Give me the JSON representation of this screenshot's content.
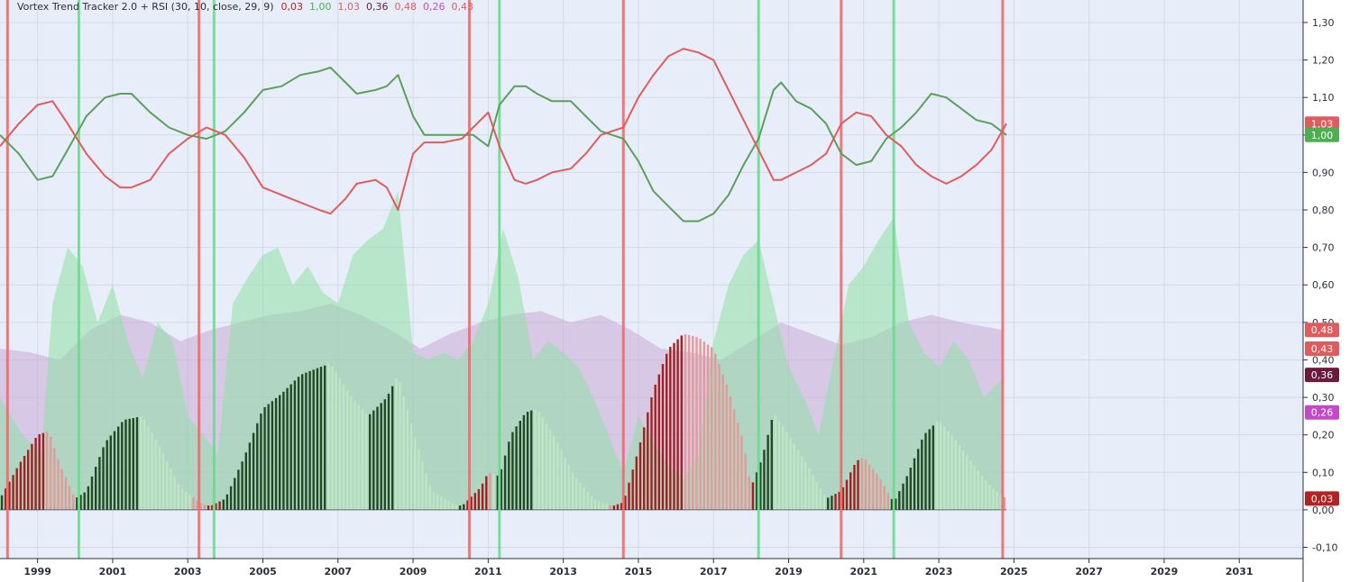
{
  "chart_data": {
    "type": "line",
    "title": "Vortex Trend Tracker 2.0 + RSI (30, 10, close, 29, 9)",
    "legend_values": [
      {
        "text": "0,03",
        "color": "#b22222"
      },
      {
        "text": "1,00",
        "color": "#4caf50"
      },
      {
        "text": "1,03",
        "color": "#e05c5c"
      },
      {
        "text": "0,36",
        "color": "#6b1a3e"
      },
      {
        "text": "0,48",
        "color": "#e05c5c"
      },
      {
        "text": "0,26",
        "color": "#c24ac9"
      },
      {
        "text": "0,43",
        "color": "#e05c5c"
      }
    ],
    "y_ticks": [
      "1,30",
      "1,20",
      "1,10",
      "1,00",
      "0,90",
      "0,80",
      "0,70",
      "0,60",
      "0,50",
      "0,40",
      "0,30",
      "0,20",
      "0,10",
      "0,00",
      "-0,10"
    ],
    "ylim": [
      -0.13,
      1.36
    ],
    "x_ticks": [
      "1999",
      "2001",
      "2003",
      "2005",
      "2007",
      "2009",
      "2011",
      "2013",
      "2015",
      "2017",
      "2019",
      "2021",
      "2023",
      "2025",
      "2027",
      "2029",
      "2031"
    ],
    "xlim": [
      1998.0,
      2032.7
    ],
    "grid": true,
    "series": [
      {
        "key": "vi_plus",
        "color": "#5aa05a",
        "x": [
          1998.0,
          1998.5,
          1999.0,
          1999.4,
          1999.8,
          2000.3,
          2000.8,
          2001.2,
          2001.5,
          2002.0,
          2002.5,
          2003.0,
          2003.5,
          2004.0,
          2004.5,
          2005.0,
          2005.5,
          2006.0,
          2006.5,
          2006.8,
          2007.2,
          2007.5,
          2008.0,
          2008.3,
          2008.6,
          2009.0,
          2009.3,
          2009.8,
          2010.3,
          2010.6,
          2011.0,
          2011.3,
          2011.7,
          2012.0,
          2012.3,
          2012.7,
          2013.2,
          2013.6,
          2014.0,
          2014.3,
          2014.6,
          2015.0,
          2015.4,
          2015.8,
          2016.2,
          2016.6,
          2017.0,
          2017.4,
          2017.8,
          2018.2,
          2018.6,
          2018.8,
          2019.2,
          2019.6,
          2020.0,
          2020.4,
          2020.8,
          2021.2,
          2021.6,
          2022.0,
          2022.4,
          2022.8,
          2023.2,
          2023.6,
          2024.0,
          2024.4,
          2024.8
        ],
        "values": [
          1.0,
          0.95,
          0.88,
          0.89,
          0.96,
          1.05,
          1.1,
          1.11,
          1.11,
          1.06,
          1.02,
          1.0,
          0.99,
          1.01,
          1.06,
          1.12,
          1.13,
          1.16,
          1.17,
          1.18,
          1.14,
          1.11,
          1.12,
          1.13,
          1.16,
          1.05,
          1.0,
          1.0,
          1.0,
          1.0,
          0.97,
          1.08,
          1.13,
          1.13,
          1.11,
          1.09,
          1.09,
          1.05,
          1.01,
          1.0,
          0.99,
          0.93,
          0.85,
          0.81,
          0.77,
          0.77,
          0.79,
          0.84,
          0.92,
          0.99,
          1.12,
          1.14,
          1.09,
          1.07,
          1.03,
          0.95,
          0.92,
          0.93,
          0.99,
          1.02,
          1.06,
          1.11,
          1.1,
          1.07,
          1.04,
          1.03,
          1.0
        ]
      },
      {
        "key": "vi_minus",
        "color": "#e05c5c",
        "x": [
          1998.0,
          1998.5,
          1999.0,
          1999.4,
          1999.8,
          2000.3,
          2000.8,
          2001.2,
          2001.5,
          2002.0,
          2002.5,
          2003.0,
          2003.5,
          2004.0,
          2004.5,
          2005.0,
          2005.5,
          2006.0,
          2006.5,
          2006.8,
          2007.2,
          2007.5,
          2008.0,
          2008.3,
          2008.6,
          2009.0,
          2009.3,
          2009.8,
          2010.3,
          2010.6,
          2011.0,
          2011.3,
          2011.7,
          2012.0,
          2012.3,
          2012.7,
          2013.2,
          2013.6,
          2014.0,
          2014.3,
          2014.6,
          2015.0,
          2015.4,
          2015.8,
          2016.2,
          2016.6,
          2017.0,
          2017.4,
          2017.8,
          2018.2,
          2018.6,
          2018.8,
          2019.2,
          2019.6,
          2020.0,
          2020.4,
          2020.8,
          2021.2,
          2021.6,
          2022.0,
          2022.4,
          2022.8,
          2023.2,
          2023.6,
          2024.0,
          2024.4,
          2024.8
        ],
        "values": [
          0.97,
          1.03,
          1.08,
          1.09,
          1.03,
          0.95,
          0.89,
          0.86,
          0.86,
          0.88,
          0.95,
          0.99,
          1.02,
          1.0,
          0.94,
          0.86,
          0.84,
          0.82,
          0.8,
          0.79,
          0.83,
          0.87,
          0.88,
          0.86,
          0.8,
          0.95,
          0.98,
          0.98,
          0.99,
          1.02,
          1.06,
          0.97,
          0.88,
          0.87,
          0.88,
          0.9,
          0.91,
          0.95,
          1.0,
          1.01,
          1.02,
          1.1,
          1.16,
          1.21,
          1.23,
          1.22,
          1.2,
          1.12,
          1.04,
          0.96,
          0.88,
          0.88,
          0.9,
          0.92,
          0.95,
          1.03,
          1.06,
          1.05,
          1.0,
          0.97,
          0.92,
          0.89,
          0.87,
          0.89,
          0.92,
          0.96,
          1.03
        ]
      },
      {
        "key": "histogram",
        "color": "#2e5e2e",
        "x": [
          1998.0,
          1998.5,
          1999.0,
          1999.3,
          1999.6,
          2000.0,
          2000.3,
          2000.8,
          2001.3,
          2001.8,
          2002.3,
          2002.8,
          2003.3,
          2003.6,
          2004.0,
          2004.5,
          2005.0,
          2005.5,
          2006.0,
          2006.5,
          2006.8,
          2007.3,
          2007.8,
          2008.3,
          2008.6,
          2009.0,
          2009.5,
          2010.0,
          2010.3,
          2010.8,
          2011.0,
          2011.3,
          2011.6,
          2012.0,
          2012.3,
          2012.8,
          2013.3,
          2013.8,
          2014.3,
          2014.6,
          2015.0,
          2015.4,
          2015.8,
          2016.2,
          2016.6,
          2017.0,
          2017.4,
          2017.8,
          2018.0,
          2018.3,
          2018.6,
          2019.0,
          2019.5,
          2020.0,
          2020.4,
          2020.8,
          2021.0,
          2021.4,
          2021.8,
          2022.2,
          2022.6,
          2023.0,
          2023.5,
          2024.0,
          2024.4,
          2024.8
        ],
        "values": [
          0.03,
          0.12,
          0.2,
          0.21,
          0.12,
          0.03,
          0.05,
          0.18,
          0.24,
          0.25,
          0.16,
          0.06,
          0.02,
          0.01,
          0.03,
          0.14,
          0.27,
          0.31,
          0.36,
          0.38,
          0.39,
          0.31,
          0.25,
          0.3,
          0.36,
          0.21,
          0.05,
          0.02,
          0.01,
          0.06,
          0.1,
          0.09,
          0.2,
          0.26,
          0.27,
          0.19,
          0.09,
          0.03,
          0.01,
          0.02,
          0.16,
          0.32,
          0.43,
          0.47,
          0.46,
          0.43,
          0.32,
          0.18,
          0.06,
          0.14,
          0.26,
          0.2,
          0.12,
          0.03,
          0.05,
          0.13,
          0.14,
          0.09,
          0.02,
          0.1,
          0.2,
          0.24,
          0.18,
          0.11,
          0.06,
          0.03
        ]
      }
    ],
    "rsi_band_green": {
      "x": [
        1998.0,
        1998.6,
        1999.1,
        1999.4,
        1999.8,
        2000.2,
        2000.6,
        2001.0,
        2001.4,
        2001.8,
        2002.2,
        2002.6,
        2003.0,
        2003.4,
        2003.8,
        2004.2,
        2004.6,
        2005.0,
        2005.4,
        2005.8,
        2006.2,
        2006.6,
        2007.0,
        2007.4,
        2007.8,
        2008.2,
        2008.6,
        2009.0,
        2009.4,
        2009.8,
        2010.2,
        2010.6,
        2011.0,
        2011.4,
        2011.8,
        2012.2,
        2012.6,
        2013.0,
        2013.4,
        2013.8,
        2014.2,
        2014.6,
        2015.0,
        2015.4,
        2015.8,
        2016.2,
        2016.6,
        2017.0,
        2017.4,
        2017.8,
        2018.2,
        2018.6,
        2019.0,
        2019.4,
        2019.8,
        2020.2,
        2020.6,
        2021.0,
        2021.4,
        2021.8,
        2022.2,
        2022.6,
        2023.0,
        2023.4,
        2023.8,
        2024.2,
        2024.7
      ],
      "values": [
        0.3,
        0.2,
        0.15,
        0.55,
        0.7,
        0.65,
        0.5,
        0.6,
        0.45,
        0.35,
        0.5,
        0.45,
        0.25,
        0.2,
        0.15,
        0.55,
        0.62,
        0.68,
        0.7,
        0.6,
        0.65,
        0.58,
        0.55,
        0.68,
        0.72,
        0.75,
        0.85,
        0.42,
        0.4,
        0.42,
        0.4,
        0.45,
        0.55,
        0.75,
        0.62,
        0.4,
        0.45,
        0.42,
        0.38,
        0.3,
        0.2,
        0.1,
        0.25,
        0.18,
        0.12,
        0.08,
        0.15,
        0.45,
        0.6,
        0.68,
        0.72,
        0.55,
        0.38,
        0.3,
        0.2,
        0.4,
        0.6,
        0.65,
        0.72,
        0.78,
        0.5,
        0.42,
        0.38,
        0.45,
        0.4,
        0.3,
        0.35
      ]
    },
    "rsi_band_purple": {
      "x": [
        1998.0,
        1998.8,
        1999.6,
        2000.4,
        2001.2,
        2002.0,
        2002.8,
        2003.6,
        2004.4,
        2005.2,
        2006.0,
        2006.8,
        2007.6,
        2008.4,
        2009.2,
        2010.0,
        2010.8,
        2011.6,
        2012.4,
        2013.2,
        2014.0,
        2014.8,
        2015.6,
        2016.4,
        2017.2,
        2018.0,
        2018.8,
        2019.6,
        2020.4,
        2021.2,
        2022.0,
        2022.8,
        2023.6,
        2024.7
      ],
      "values": [
        0.43,
        0.42,
        0.4,
        0.48,
        0.52,
        0.5,
        0.45,
        0.48,
        0.5,
        0.52,
        0.53,
        0.55,
        0.52,
        0.48,
        0.43,
        0.47,
        0.5,
        0.52,
        0.53,
        0.5,
        0.52,
        0.48,
        0.43,
        0.42,
        0.4,
        0.45,
        0.5,
        0.47,
        0.44,
        0.46,
        0.5,
        0.52,
        0.5,
        0.48
      ]
    },
    "signals_red": [
      1998.2,
      2003.3,
      2010.5,
      2014.6,
      2020.4,
      2024.7
    ],
    "signals_green": [
      2000.1,
      2003.7,
      2011.3,
      2018.2,
      2021.8
    ],
    "price_badges": [
      {
        "text": "1,03",
        "value": 1.03,
        "color": "#e05c5c"
      },
      {
        "text": "1,00",
        "value": 1.0,
        "color": "#4caf50"
      },
      {
        "text": "0,48",
        "value": 0.48,
        "color": "#e05c5c"
      },
      {
        "text": "0,43",
        "value": 0.43,
        "color": "#e05c5c"
      },
      {
        "text": "0,36",
        "value": 0.36,
        "color": "#6b1a3e"
      },
      {
        "text": "0,26",
        "value": 0.26,
        "color": "#c24ac9"
      },
      {
        "text": "0,03",
        "value": 0.03,
        "color": "#b22222"
      }
    ]
  }
}
